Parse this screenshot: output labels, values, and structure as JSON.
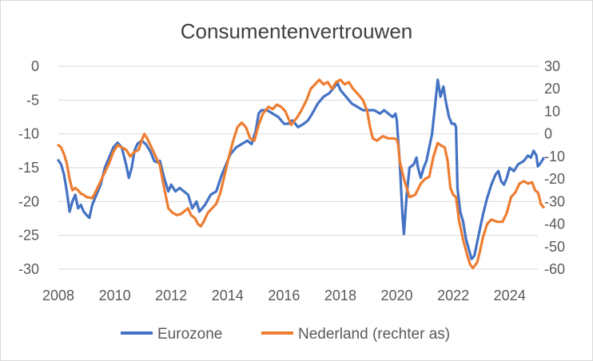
{
  "chart_data": {
    "type": "line",
    "title": "Consumentenvertrouwen",
    "x_ticks": [
      "2008",
      "2010",
      "2012",
      "2014",
      "2016",
      "2018",
      "2020",
      "2022",
      "2024"
    ],
    "x_range": [
      2008,
      2025
    ],
    "y_left": {
      "range": [
        -30,
        0
      ],
      "ticks": [
        "0",
        "-5",
        "-10",
        "-15",
        "-20",
        "-25",
        "-30"
      ]
    },
    "y_right": {
      "range": [
        -60,
        30
      ],
      "ticks": [
        "30",
        "20",
        "10",
        "0",
        "-10",
        "-20",
        "-30",
        "-40",
        "-50",
        "-60"
      ]
    },
    "gridlines": true,
    "legend_position": "bottom",
    "series": [
      {
        "name": "Eurozone",
        "axis": "left",
        "color": "#4472C4",
        "points": [
          [
            2008.0,
            -13.9
          ],
          [
            2008.1,
            -14.5
          ],
          [
            2008.2,
            -16
          ],
          [
            2008.3,
            -18.5
          ],
          [
            2008.4,
            -21.5
          ],
          [
            2008.5,
            -20
          ],
          [
            2008.6,
            -19
          ],
          [
            2008.7,
            -21
          ],
          [
            2008.8,
            -20.5
          ],
          [
            2008.9,
            -21.5
          ],
          [
            2009.0,
            -22
          ],
          [
            2009.1,
            -22.4
          ],
          [
            2009.2,
            -20.5
          ],
          [
            2009.35,
            -19
          ],
          [
            2009.5,
            -17.5
          ],
          [
            2009.65,
            -15
          ],
          [
            2009.8,
            -13.5
          ],
          [
            2009.95,
            -12
          ],
          [
            2010.1,
            -11.3
          ],
          [
            2010.25,
            -12
          ],
          [
            2010.4,
            -14.5
          ],
          [
            2010.5,
            -16.5
          ],
          [
            2010.6,
            -15
          ],
          [
            2010.7,
            -12.5
          ],
          [
            2010.8,
            -11.5
          ],
          [
            2010.95,
            -11
          ],
          [
            2011.1,
            -11.5
          ],
          [
            2011.25,
            -12.5
          ],
          [
            2011.4,
            -14
          ],
          [
            2011.5,
            -14.2
          ],
          [
            2011.6,
            -14
          ],
          [
            2011.75,
            -16.5
          ],
          [
            2011.9,
            -18.5
          ],
          [
            2012.0,
            -17.5
          ],
          [
            2012.15,
            -18.5
          ],
          [
            2012.3,
            -18
          ],
          [
            2012.45,
            -18.5
          ],
          [
            2012.6,
            -19
          ],
          [
            2012.75,
            -21
          ],
          [
            2012.9,
            -20
          ],
          [
            2013.0,
            -21.5
          ],
          [
            2013.2,
            -20.5
          ],
          [
            2013.4,
            -19
          ],
          [
            2013.6,
            -18.5
          ],
          [
            2013.8,
            -16
          ],
          [
            2013.95,
            -14.5
          ],
          [
            2014.1,
            -13
          ],
          [
            2014.3,
            -12
          ],
          [
            2014.5,
            -11.5
          ],
          [
            2014.7,
            -11
          ],
          [
            2014.85,
            -11.5
          ],
          [
            2015.0,
            -9.5
          ],
          [
            2015.1,
            -7
          ],
          [
            2015.2,
            -6.5
          ],
          [
            2015.4,
            -6.5
          ],
          [
            2015.6,
            -7
          ],
          [
            2015.8,
            -7.5
          ],
          [
            2016.0,
            -8.5
          ],
          [
            2016.15,
            -8.5
          ],
          [
            2016.3,
            -8
          ],
          [
            2016.5,
            -9
          ],
          [
            2016.7,
            -8.5
          ],
          [
            2016.85,
            -8
          ],
          [
            2017.0,
            -7
          ],
          [
            2017.2,
            -5.5
          ],
          [
            2017.4,
            -4.5
          ],
          [
            2017.6,
            -4
          ],
          [
            2017.8,
            -3
          ],
          [
            2017.9,
            -2.5
          ],
          [
            2018.0,
            -3.5
          ],
          [
            2018.2,
            -4.5
          ],
          [
            2018.4,
            -5.5
          ],
          [
            2018.6,
            -6
          ],
          [
            2018.8,
            -6.5
          ],
          [
            2019.0,
            -6.5
          ],
          [
            2019.2,
            -6.5
          ],
          [
            2019.4,
            -7
          ],
          [
            2019.55,
            -6.5
          ],
          [
            2019.7,
            -7
          ],
          [
            2019.85,
            -7.5
          ],
          [
            2019.95,
            -7
          ],
          [
            2020.0,
            -8
          ],
          [
            2020.1,
            -14
          ],
          [
            2020.2,
            -22
          ],
          [
            2020.25,
            -24.8
          ],
          [
            2020.35,
            -19
          ],
          [
            2020.45,
            -15
          ],
          [
            2020.6,
            -14.5
          ],
          [
            2020.7,
            -13.5
          ],
          [
            2020.75,
            -15
          ],
          [
            2020.85,
            -16.5
          ],
          [
            2020.95,
            -15
          ],
          [
            2021.05,
            -14
          ],
          [
            2021.15,
            -12
          ],
          [
            2021.25,
            -10
          ],
          [
            2021.35,
            -6
          ],
          [
            2021.45,
            -2
          ],
          [
            2021.55,
            -4.5
          ],
          [
            2021.65,
            -3
          ],
          [
            2021.75,
            -5.5
          ],
          [
            2021.85,
            -7.5
          ],
          [
            2021.95,
            -8.5
          ],
          [
            2022.05,
            -8.5
          ],
          [
            2022.1,
            -9
          ],
          [
            2022.15,
            -18
          ],
          [
            2022.25,
            -21.5
          ],
          [
            2022.35,
            -23
          ],
          [
            2022.45,
            -25.5
          ],
          [
            2022.55,
            -27
          ],
          [
            2022.65,
            -28.5
          ],
          [
            2022.75,
            -28
          ],
          [
            2022.85,
            -26
          ],
          [
            2022.95,
            -24
          ],
          [
            2023.05,
            -22
          ],
          [
            2023.2,
            -19.5
          ],
          [
            2023.35,
            -17.5
          ],
          [
            2023.5,
            -16
          ],
          [
            2023.6,
            -15.5
          ],
          [
            2023.7,
            -17
          ],
          [
            2023.8,
            -17.5
          ],
          [
            2023.9,
            -16.5
          ],
          [
            2024.0,
            -15
          ],
          [
            2024.15,
            -15.5
          ],
          [
            2024.3,
            -14.5
          ],
          [
            2024.5,
            -14
          ],
          [
            2024.65,
            -13.2
          ],
          [
            2024.75,
            -13.5
          ],
          [
            2024.85,
            -12.5
          ],
          [
            2024.95,
            -13.2
          ],
          [
            2025.0,
            -14.8
          ],
          [
            2025.1,
            -14.3
          ],
          [
            2025.2,
            -13.6
          ]
        ]
      },
      {
        "name": "Nederland (rechter as)",
        "axis": "right",
        "color": "#ED7D31",
        "points": [
          [
            2008.0,
            -5
          ],
          [
            2008.1,
            -6
          ],
          [
            2008.2,
            -9
          ],
          [
            2008.3,
            -13
          ],
          [
            2008.4,
            -20
          ],
          [
            2008.5,
            -25
          ],
          [
            2008.6,
            -24
          ],
          [
            2008.7,
            -25
          ],
          [
            2008.8,
            -26.5
          ],
          [
            2008.9,
            -27
          ],
          [
            2009.0,
            -28
          ],
          [
            2009.2,
            -28.5
          ],
          [
            2009.35,
            -25
          ],
          [
            2009.5,
            -21
          ],
          [
            2009.65,
            -17
          ],
          [
            2009.8,
            -13
          ],
          [
            2009.95,
            -8
          ],
          [
            2010.1,
            -5
          ],
          [
            2010.25,
            -6
          ],
          [
            2010.4,
            -7
          ],
          [
            2010.55,
            -10
          ],
          [
            2010.7,
            -8
          ],
          [
            2010.85,
            -7
          ],
          [
            2010.95,
            -3
          ],
          [
            2011.05,
            0
          ],
          [
            2011.15,
            -2
          ],
          [
            2011.3,
            -6
          ],
          [
            2011.45,
            -10
          ],
          [
            2011.6,
            -14
          ],
          [
            2011.75,
            -24
          ],
          [
            2011.9,
            -33
          ],
          [
            2012.05,
            -35
          ],
          [
            2012.2,
            -36
          ],
          [
            2012.35,
            -35.5
          ],
          [
            2012.5,
            -34
          ],
          [
            2012.6,
            -33
          ],
          [
            2012.7,
            -36
          ],
          [
            2012.85,
            -37.5
          ],
          [
            2012.95,
            -40
          ],
          [
            2013.05,
            -41
          ],
          [
            2013.15,
            -39
          ],
          [
            2013.3,
            -35
          ],
          [
            2013.45,
            -33
          ],
          [
            2013.6,
            -31
          ],
          [
            2013.75,
            -26
          ],
          [
            2013.9,
            -18
          ],
          [
            2014.05,
            -10
          ],
          [
            2014.2,
            -3
          ],
          [
            2014.35,
            3
          ],
          [
            2014.5,
            5
          ],
          [
            2014.65,
            3
          ],
          [
            2014.8,
            -2
          ],
          [
            2014.95,
            -3
          ],
          [
            2015.1,
            4
          ],
          [
            2015.25,
            9
          ],
          [
            2015.45,
            12
          ],
          [
            2015.6,
            11
          ],
          [
            2015.75,
            13
          ],
          [
            2015.9,
            12
          ],
          [
            2016.05,
            10
          ],
          [
            2016.15,
            7
          ],
          [
            2016.25,
            4
          ],
          [
            2016.45,
            7
          ],
          [
            2016.6,
            10
          ],
          [
            2016.8,
            15
          ],
          [
            2016.95,
            20
          ],
          [
            2017.1,
            22
          ],
          [
            2017.25,
            24
          ],
          [
            2017.4,
            22
          ],
          [
            2017.55,
            23
          ],
          [
            2017.7,
            20
          ],
          [
            2017.85,
            23
          ],
          [
            2018.0,
            24
          ],
          [
            2018.15,
            22
          ],
          [
            2018.3,
            23
          ],
          [
            2018.45,
            20
          ],
          [
            2018.6,
            18
          ],
          [
            2018.8,
            15
          ],
          [
            2018.95,
            10
          ],
          [
            2019.05,
            3
          ],
          [
            2019.15,
            -2
          ],
          [
            2019.3,
            -3
          ],
          [
            2019.5,
            -1
          ],
          [
            2019.7,
            -2
          ],
          [
            2019.9,
            -2
          ],
          [
            2020.0,
            -2.5
          ],
          [
            2020.05,
            -5
          ],
          [
            2020.1,
            -12
          ],
          [
            2020.25,
            -20
          ],
          [
            2020.45,
            -28
          ],
          [
            2020.65,
            -27
          ],
          [
            2020.85,
            -22
          ],
          [
            2021.0,
            -20
          ],
          [
            2021.15,
            -19
          ],
          [
            2021.3,
            -10
          ],
          [
            2021.45,
            -4
          ],
          [
            2021.55,
            -5
          ],
          [
            2021.7,
            -6
          ],
          [
            2021.8,
            -12
          ],
          [
            2021.9,
            -24
          ],
          [
            2022.0,
            -27
          ],
          [
            2022.1,
            -28
          ],
          [
            2022.2,
            -38
          ],
          [
            2022.35,
            -47
          ],
          [
            2022.5,
            -54
          ],
          [
            2022.6,
            -58
          ],
          [
            2022.7,
            -59.5
          ],
          [
            2022.85,
            -57
          ],
          [
            2022.95,
            -52
          ],
          [
            2023.05,
            -46
          ],
          [
            2023.2,
            -40
          ],
          [
            2023.35,
            -38
          ],
          [
            2023.55,
            -39
          ],
          [
            2023.75,
            -39
          ],
          [
            2023.9,
            -35
          ],
          [
            2024.05,
            -28
          ],
          [
            2024.2,
            -26
          ],
          [
            2024.35,
            -22
          ],
          [
            2024.5,
            -21
          ],
          [
            2024.65,
            -22
          ],
          [
            2024.8,
            -21.5
          ],
          [
            2024.9,
            -25
          ],
          [
            2025.0,
            -26
          ],
          [
            2025.05,
            -28
          ],
          [
            2025.1,
            -31
          ],
          [
            2025.2,
            -32.5
          ]
        ]
      }
    ]
  }
}
